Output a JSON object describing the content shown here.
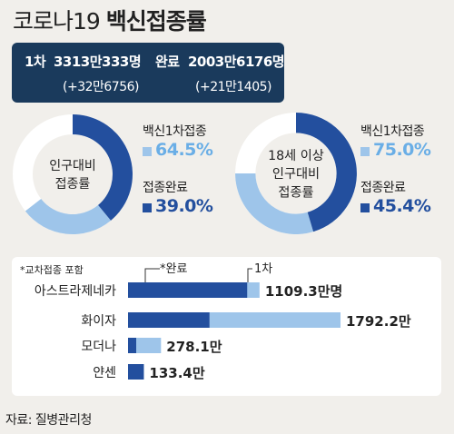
{
  "title": {
    "light": "코로나19",
    "bold": "백신접종률"
  },
  "stats": {
    "first": {
      "label": "1차",
      "value": "3313만333명",
      "delta": "(+32만6756)"
    },
    "complete": {
      "label": "완료",
      "value": "2003만6176명",
      "delta": "(+21만1405)"
    }
  },
  "colors": {
    "dark": "#234f9e",
    "light": "#9ec5ea",
    "navy": "#1a3a5c",
    "bg": "#f1efeb"
  },
  "chart_data": [
    {
      "type": "pie",
      "title": "인구대비 접종률",
      "center_lines": [
        "인구대비",
        "접종률"
      ],
      "legend": [
        {
          "name": "백신1차접종",
          "value": 64.5,
          "display": "64.5%"
        },
        {
          "name": "접종완료",
          "value": 39.0,
          "display": "39.0%"
        }
      ]
    },
    {
      "type": "pie",
      "title": "18세 이상 인구대비 접종률",
      "center_lines": [
        "18세 이상",
        "인구대비",
        "접종률"
      ],
      "legend": [
        {
          "name": "백신1차접종",
          "value": 75.0,
          "display": "75.0%"
        },
        {
          "name": "접종완료",
          "value": 45.4,
          "display": "45.4%"
        }
      ]
    },
    {
      "type": "bar",
      "note": "*교차접종 포함",
      "series_labels": {
        "complete": "*완료",
        "first": "1차"
      },
      "unit": "만",
      "categories": [
        "아스트라제네카",
        "화이자",
        "모더나",
        "얀센"
      ],
      "complete": [
        1005,
        687,
        69,
        133.4
      ],
      "first": [
        1109.3,
        1792.2,
        278.1,
        133.4
      ],
      "value_labels": [
        "1109.3만명",
        "1792.2만",
        "278.1만",
        "133.4만"
      ]
    }
  ],
  "source": "자료: 질병관리청"
}
